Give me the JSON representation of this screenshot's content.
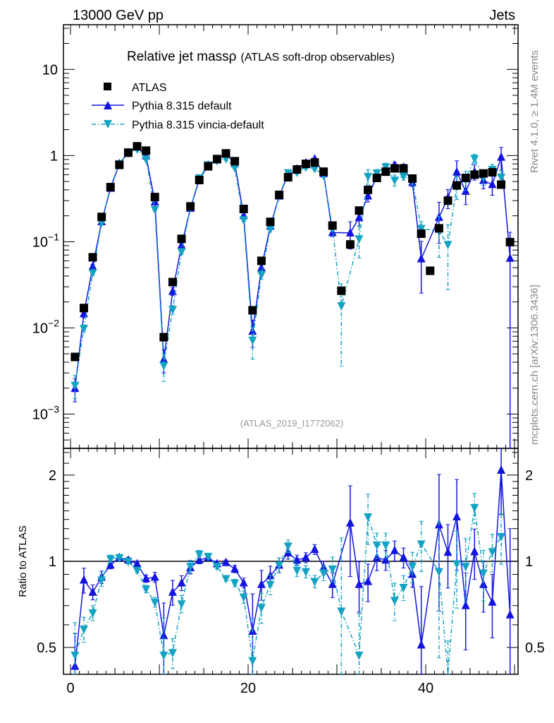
{
  "header": {
    "left": "13000 GeV pp",
    "right": "Jets"
  },
  "side_text": {
    "rivet": "Rivet 4.1.0, ≥ 1.4M events",
    "mcplots": "mcplots.cern.ch [arXiv:1306.3436]"
  },
  "watermark": "(ATLAS_2019_I1772062)",
  "colors": {
    "atlas": "#000000",
    "default": "#1414e0",
    "vincia": "#13a3c3"
  },
  "chart_data": [
    {
      "type": "scatter",
      "panel": "main",
      "title": "Relative jet massρ",
      "subtitle": "(ATLAS soft-drop observables)",
      "xlabel": "",
      "ylabel": "",
      "xlim": [
        -0.8,
        50.4
      ],
      "ylim": [
        0.0004,
        33
      ],
      "yscale": "log",
      "ytick_labels": [
        {
          "v": 10,
          "base": "10",
          "exp": ""
        },
        {
          "v": 1,
          "base": "1",
          "exp": ""
        },
        {
          "v": 0.1,
          "base": "10",
          "exp": "−1"
        },
        {
          "v": 0.01,
          "base": "10",
          "exp": "−2"
        },
        {
          "v": 0.001,
          "base": "10",
          "exp": "−3"
        }
      ],
      "legend_position": "top-left",
      "legend": [
        "ATLAS",
        "Pythia 8.315 default",
        "Pythia 8.315 vincia-default"
      ],
      "x": [
        0.5,
        1.5,
        2.5,
        3.5,
        4.5,
        5.5,
        6.5,
        7.5,
        8.5,
        9.5,
        10.5,
        11.5,
        12.5,
        13.5,
        14.5,
        15.5,
        16.5,
        17.5,
        18.5,
        19.5,
        20.5,
        21.5,
        22.5,
        23.5,
        24.5,
        25.5,
        26.5,
        27.5,
        28.5,
        29.5,
        30.5,
        31.5,
        32.5,
        33.5,
        34.5,
        35.5,
        36.5,
        37.5,
        38.5,
        39.5,
        40.5,
        41.5,
        42.5,
        43.5,
        44.5,
        45.5,
        46.5,
        47.5,
        48.5,
        49.5
      ],
      "atlas": [
        0.0046,
        0.017,
        0.066,
        0.194,
        0.43,
        0.78,
        1.08,
        1.28,
        1.14,
        0.33,
        0.0078,
        0.034,
        0.108,
        0.257,
        0.52,
        0.75,
        0.91,
        1.06,
        0.86,
        0.24,
        0.016,
        0.06,
        0.17,
        0.35,
        0.56,
        0.69,
        0.8,
        0.83,
        0.65,
        0.154,
        0.027,
        0.093,
        0.23,
        0.4,
        0.55,
        0.65,
        0.71,
        0.71,
        0.54,
        0.124,
        0.046,
        0.143,
        0.3,
        0.45,
        0.55,
        0.6,
        0.62,
        0.64,
        0.46,
        0.099
      ]
    },
    {
      "type": "line",
      "panel": "ratio",
      "ylabel": "Ratio to ATLAS",
      "yscale": "log",
      "ylim": [
        0.403,
        2.48
      ],
      "ytick_labels": [
        "2",
        "1",
        "0.5"
      ],
      "ytick_values": [
        2,
        1,
        0.5
      ],
      "xtick_labels": [
        "0",
        "20",
        "40"
      ],
      "xtick_values": [
        0,
        20,
        40
      ],
      "series": [
        {
          "name": "Pythia 8.315 default",
          "ratio": [
            0.43,
            0.86,
            0.78,
            0.88,
            0.97,
            1.03,
            1.01,
            0.98,
            0.87,
            0.88,
            0.55,
            0.78,
            0.84,
            0.95,
            1.01,
            1.03,
            0.98,
            0.99,
            0.94,
            0.84,
            0.57,
            0.83,
            0.89,
            0.97,
            1.07,
            1.01,
            1.03,
            1.1,
            0.95,
            0.83,
            null,
            1.36,
            0.83,
            0.85,
            1.03,
            1.01,
            1.09,
            1.03,
            0.9,
            0.51,
            null,
            1.34,
            1.075,
            1.43,
            0.7,
            1.08,
            0.83,
            0.72,
            2.08,
            0.65
          ],
          "rel_err": [
            0.3,
            0.1,
            0.06,
            0.05,
            0.03,
            0.02,
            0.02,
            0.02,
            0.03,
            0.04,
            0.3,
            0.1,
            0.06,
            0.05,
            0.03,
            0.02,
            0.02,
            0.02,
            0.03,
            0.04,
            0.35,
            0.12,
            0.08,
            0.06,
            0.05,
            0.04,
            0.04,
            0.04,
            0.05,
            0.1,
            0,
            0.35,
            0.2,
            0.15,
            0.1,
            0.08,
            0.08,
            0.08,
            0.1,
            0.6,
            0,
            0.5,
            0.25,
            0.35,
            0.3,
            0.2,
            0.2,
            0.25,
            0.3,
            1.0
          ]
        },
        {
          "name": "Pythia 8.315 vincia-default",
          "ratio": [
            0.47,
            0.58,
            0.66,
            0.86,
            1.02,
            1.03,
            1.0,
            0.93,
            0.8,
            0.72,
            0.47,
            0.48,
            0.71,
            0.96,
            1.06,
            1.04,
            0.96,
            0.87,
            0.84,
            0.75,
            0.45,
            0.69,
            0.83,
            0.97,
            1.13,
            0.93,
            0.92,
            0.85,
            0.91,
            0.94,
            0.67,
            null,
            0.47,
            1.43,
            1.14,
            1.14,
            0.73,
            0.81,
            0.96,
            1.15,
            null,
            0.92,
            0.31,
            0.98,
            0.96,
            1.54,
            0.91,
            1.08,
            1.22,
            null
          ],
          "rel_err": [
            0.3,
            0.1,
            0.06,
            0.05,
            0.03,
            0.02,
            0.02,
            0.02,
            0.03,
            0.04,
            0.35,
            0.12,
            0.07,
            0.05,
            0.03,
            0.02,
            0.02,
            0.02,
            0.03,
            0.05,
            0.4,
            0.12,
            0.08,
            0.06,
            0.05,
            0.05,
            0.05,
            0.05,
            0.06,
            0.1,
            0.8,
            0,
            0.4,
            0.2,
            0.1,
            0.1,
            0.15,
            0.1,
            0.12,
            0.2,
            0,
            0.5,
            0.7,
            0.3,
            0.25,
            0.12,
            0.2,
            0.15,
            0.2,
            0
          ]
        }
      ]
    }
  ]
}
